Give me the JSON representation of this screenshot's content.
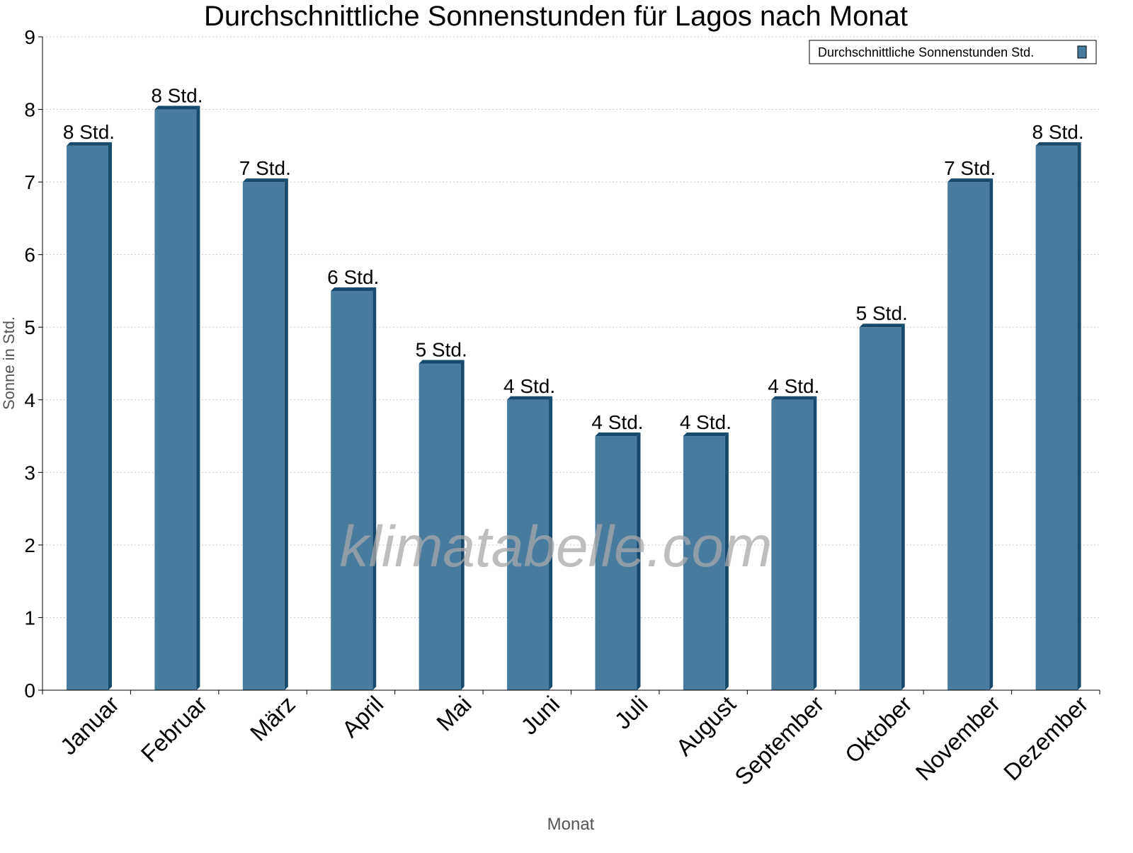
{
  "chart_data": {
    "type": "bar",
    "title": "Durchschnittliche Sonnenstunden für Lagos nach Monat",
    "xlabel": "Monat",
    "ylabel": "Sonne in Std.",
    "ylim": [
      0,
      9
    ],
    "yticks": [
      "0",
      "1",
      "2",
      "3",
      "4",
      "5",
      "6",
      "7",
      "8",
      "9"
    ],
    "grid": true,
    "legend_position": "top-right",
    "categories": [
      "Januar",
      "Februar",
      "März",
      "April",
      "Mai",
      "Juni",
      "Juli",
      "August",
      "September",
      "Oktober",
      "November",
      "Dezember"
    ],
    "series": [
      {
        "name": "Durchschnittliche Sonnenstunden Std.",
        "color": "#477c9f",
        "side_color": "#174a6c",
        "values": [
          7.5,
          8,
          7,
          5.5,
          4.5,
          4,
          3.5,
          3.5,
          4,
          5,
          7,
          7.5
        ],
        "data_labels": [
          "8 Std.",
          "8 Std.",
          "7 Std.",
          "6 Std.",
          "5 Std.",
          "4 Std.",
          "4 Std.",
          "4 Std.",
          "4 Std.",
          "5 Std.",
          "7 Std.",
          "8 Std."
        ]
      }
    ],
    "watermark": "klimatabelle.com"
  }
}
